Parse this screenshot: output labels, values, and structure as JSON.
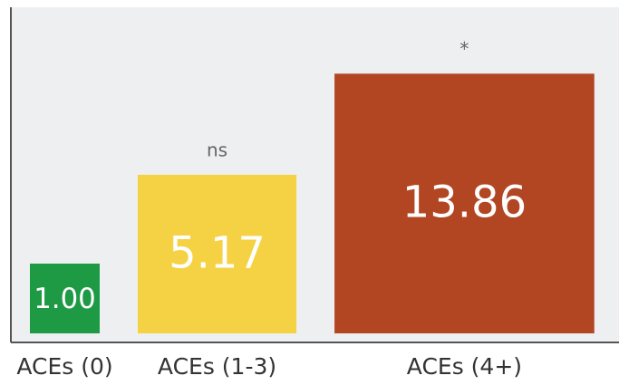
{
  "chart_data": {
    "type": "bar",
    "categories": [
      "ACEs (0)",
      "ACEs (1-3)",
      "ACEs (4+)"
    ],
    "values": [
      1.0,
      5.17,
      13.86
    ],
    "value_labels": [
      "1.00",
      "5.17",
      "13.86"
    ],
    "annotations": [
      null,
      "ns",
      "*"
    ],
    "colors": [
      "#1e9a45",
      "#f5d244",
      "#b24623"
    ]
  }
}
